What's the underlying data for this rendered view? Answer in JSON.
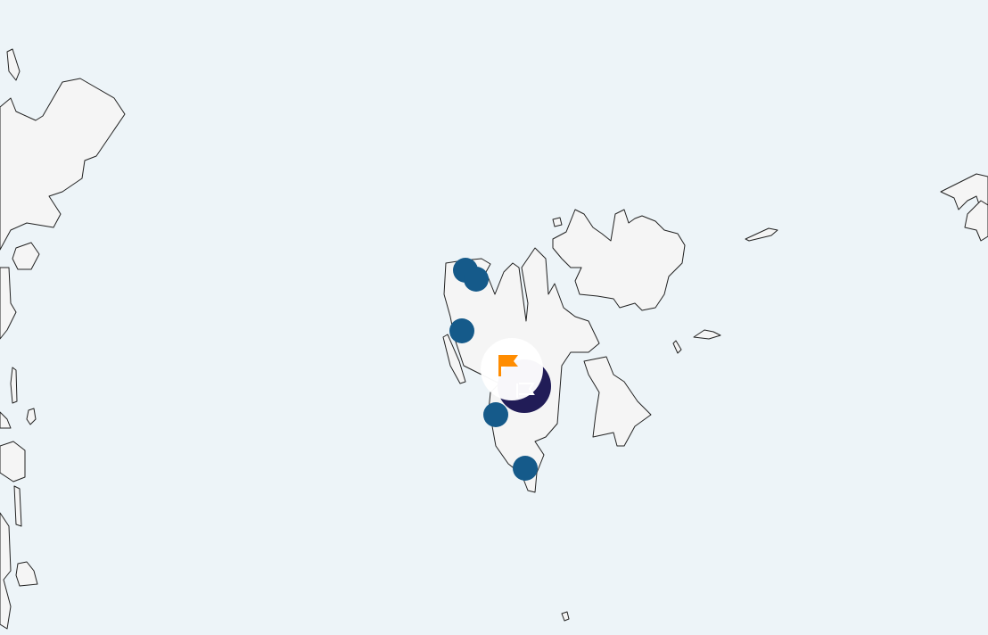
{
  "map": {
    "region": "Svalbard",
    "colors": {
      "water": "#edf4f8",
      "land": "#f5f5f5",
      "coastline": "#222222",
      "poi_marker": "#155a8a",
      "selected_marker": "#211c57",
      "flag": "#ff8c00"
    },
    "markers": [
      {
        "type": "poi",
        "icon": "circle"
      },
      {
        "type": "poi",
        "icon": "circle"
      },
      {
        "type": "poi",
        "icon": "circle"
      },
      {
        "type": "poi",
        "icon": "circle"
      },
      {
        "type": "poi",
        "icon": "circle"
      }
    ],
    "selected_marker": {
      "icon": "flag-icon"
    }
  }
}
